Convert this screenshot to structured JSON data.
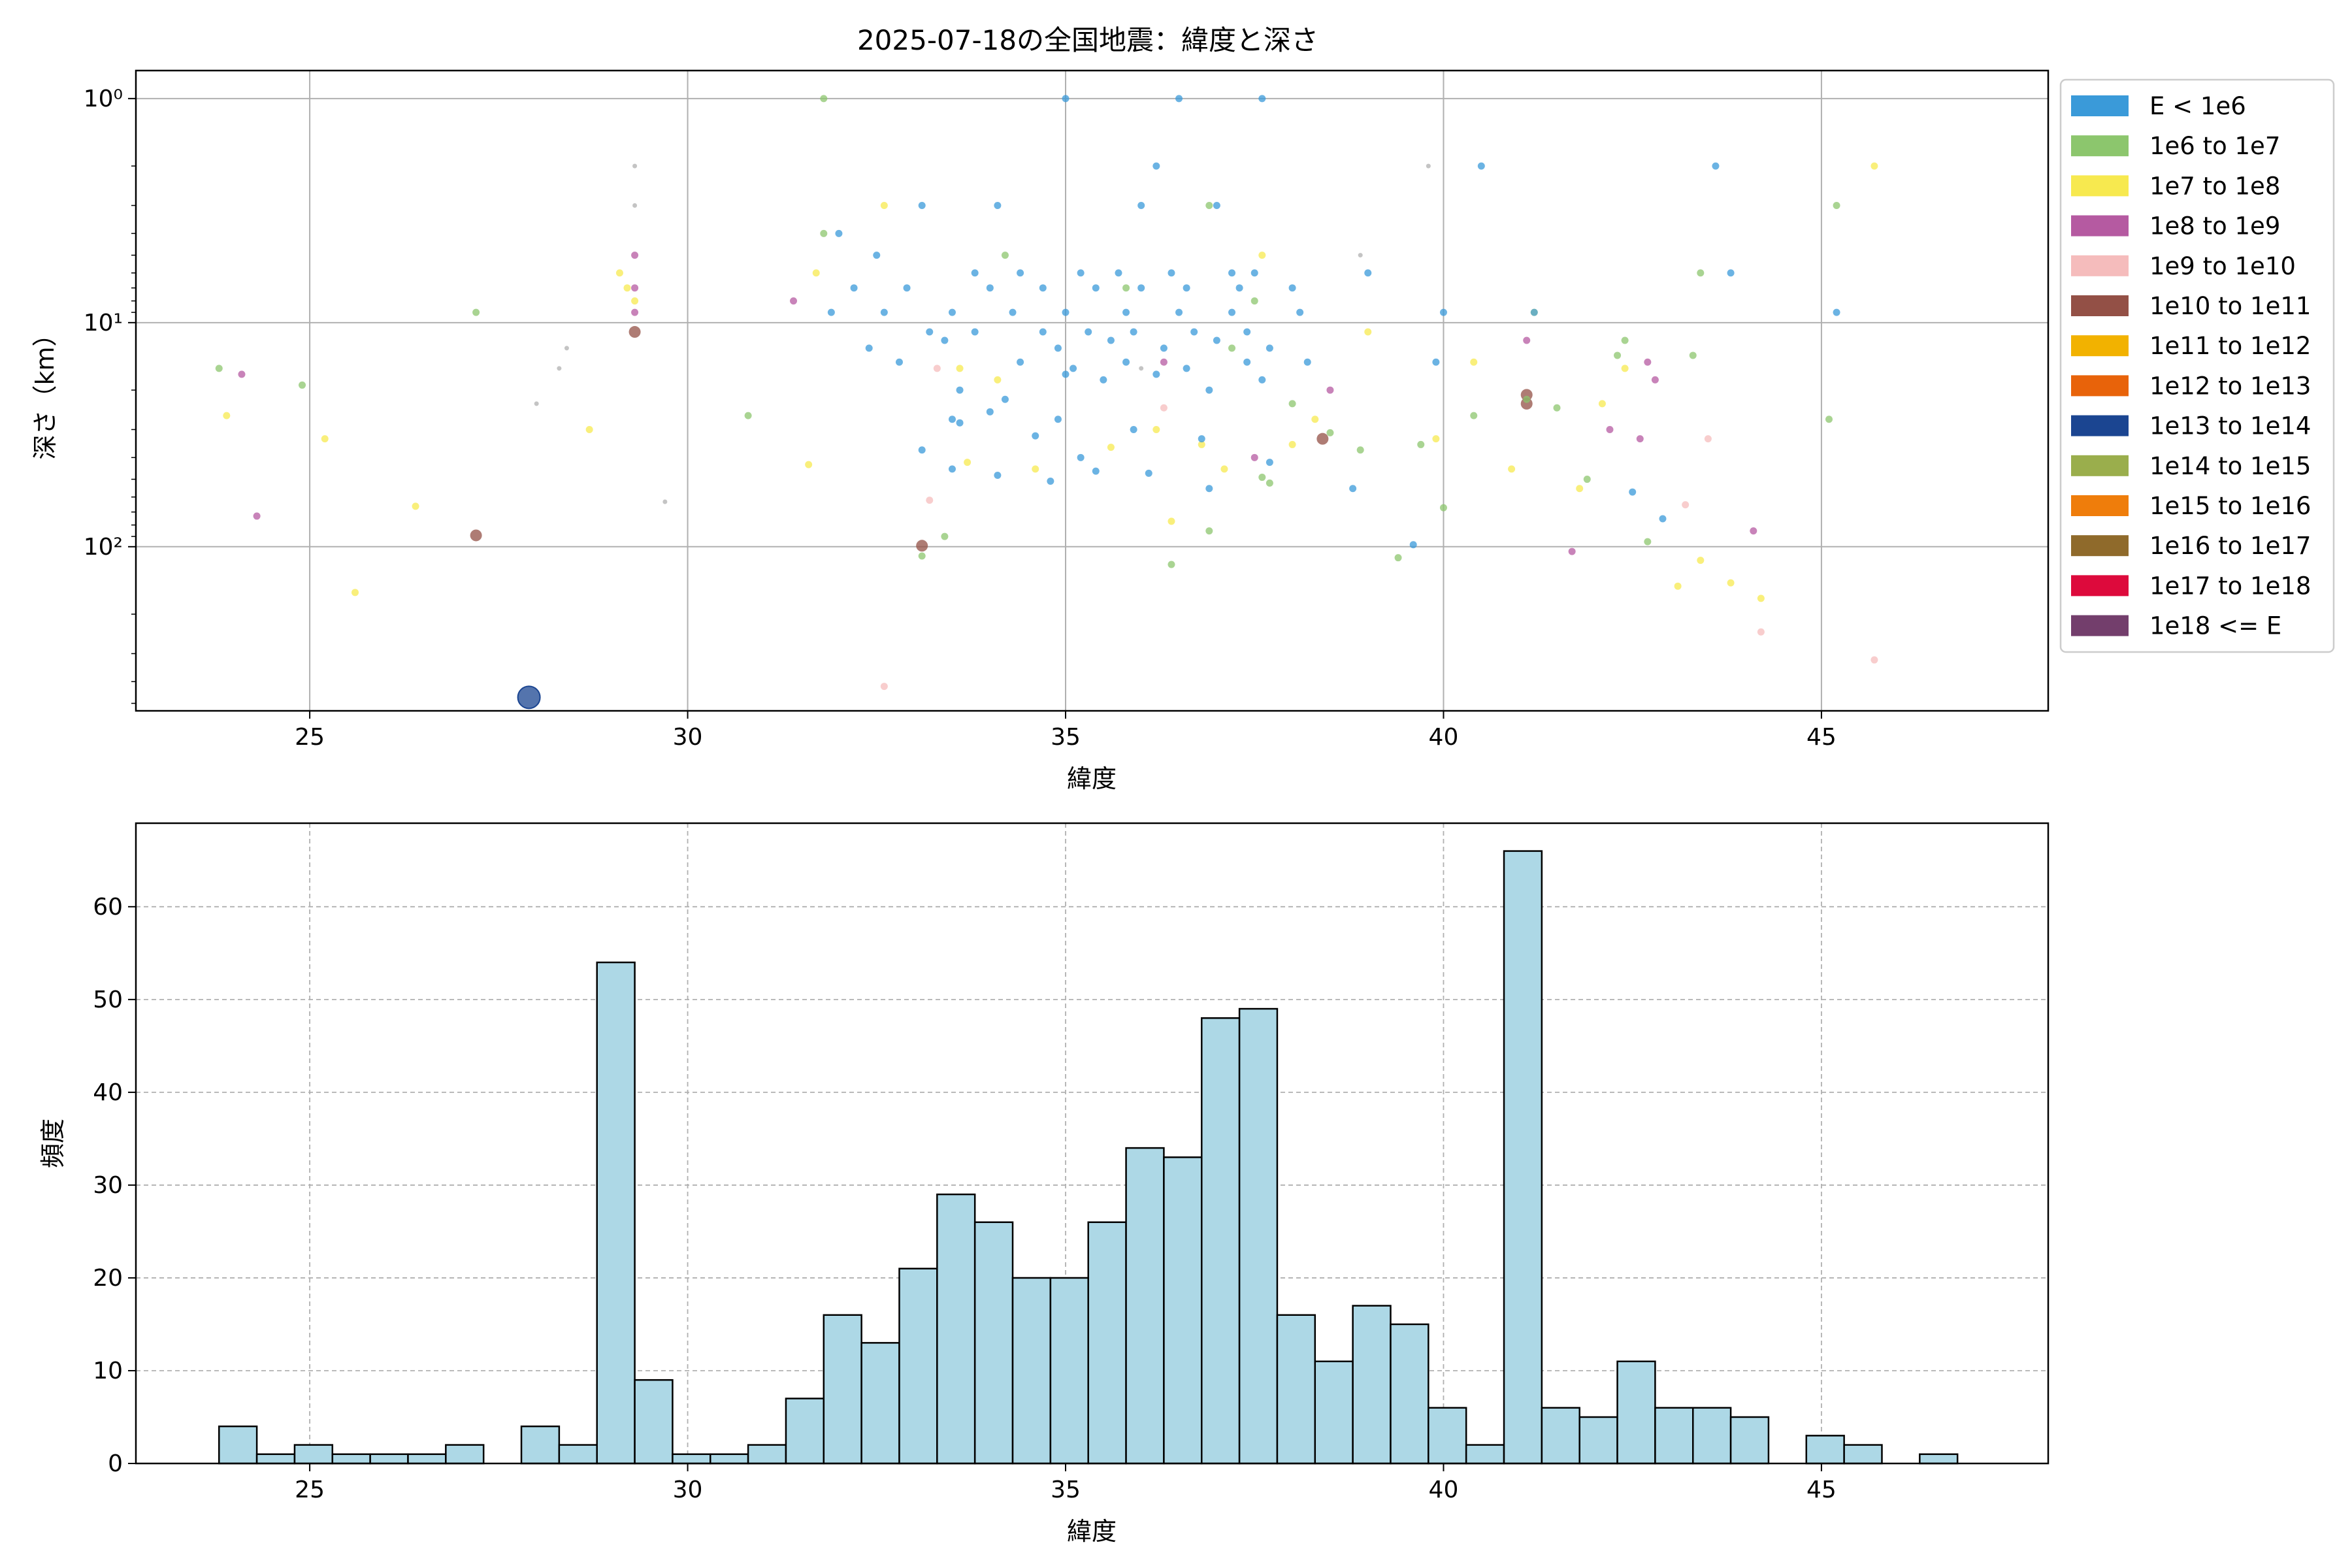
{
  "figure_title": "2025-07-18の全国地震：緯度と深さ",
  "chart_data": [
    {
      "type": "scatter",
      "xlabel": "緯度",
      "ylabel": "深さ（km）",
      "xlim": [
        22.7,
        48.0
      ],
      "ylim": [
        540,
        0.75
      ],
      "y_scale": "log (inverted)",
      "x_ticks": [
        25,
        30,
        35,
        40,
        45
      ],
      "x_tick_labels": [
        "25",
        "30",
        "35",
        "40",
        "45"
      ],
      "y_ticks": [
        1,
        10,
        100
      ],
      "y_tick_labels": [
        "10⁰",
        "10¹",
        "10²"
      ],
      "grid": true,
      "legend_position": "right, outside plot",
      "legend": [
        {
          "label": "E < 1e6",
          "color": "#3a9ad9"
        },
        {
          "label": "1e6 to 1e7",
          "color": "#8cc66d"
        },
        {
          "label": "1e7 to 1e8",
          "color": "#f7e94f"
        },
        {
          "label": "1e8 to 1e9",
          "color": "#b55aa1"
        },
        {
          "label": "1e9 to 1e10",
          "color": "#f5bcbc"
        },
        {
          "label": "1e10 to 1e11",
          "color": "#935046"
        },
        {
          "label": "1e11 to 1e12",
          "color": "#f2b200"
        },
        {
          "label": "1e12 to 1e13",
          "color": "#e8630a"
        },
        {
          "label": "1e13 to 1e14",
          "color": "#1b4591"
        },
        {
          "label": "1e14 to 1e15",
          "color": "#9aae4c"
        },
        {
          "label": "1e15 to 1e16",
          "color": "#ef7d0b"
        },
        {
          "label": "1e16 to 1e17",
          "color": "#8f6a2b"
        },
        {
          "label": "1e17 to 1e18",
          "color": "#dd0a3c"
        },
        {
          "label": "1e18 <= E",
          "color": "#733e6c"
        }
      ],
      "points": [
        [
          27.9,
          470,
          8
        ],
        [
          27.2,
          89,
          5
        ],
        [
          33.1,
          99,
          5
        ],
        [
          38.4,
          33,
          5
        ],
        [
          41.1,
          23,
          5
        ],
        [
          41.1,
          21,
          5
        ],
        [
          29.3,
          11,
          5
        ],
        [
          29.3,
          9,
          3
        ],
        [
          29.3,
          7,
          3
        ],
        [
          29.3,
          5,
          3
        ],
        [
          24.1,
          17,
          3
        ],
        [
          24.3,
          73,
          3
        ],
        [
          31.4,
          8,
          3
        ],
        [
          36.3,
          15,
          3
        ],
        [
          37.5,
          40,
          3
        ],
        [
          38.5,
          20,
          3
        ],
        [
          41.1,
          12,
          3
        ],
        [
          41.7,
          105,
          3
        ],
        [
          42.2,
          30,
          3
        ],
        [
          42.6,
          33,
          3
        ],
        [
          42.7,
          15,
          3
        ],
        [
          42.8,
          18,
          3
        ],
        [
          44.1,
          85,
          3
        ],
        [
          33.3,
          16,
          4
        ],
        [
          33.2,
          62,
          4
        ],
        [
          36.3,
          24,
          4
        ],
        [
          43.2,
          65,
          4
        ],
        [
          43.5,
          33,
          4
        ],
        [
          44.2,
          240,
          4
        ],
        [
          45.7,
          320,
          4
        ],
        [
          32.6,
          420,
          4
        ],
        [
          29.2,
          7,
          2
        ],
        [
          29.3,
          8,
          2
        ],
        [
          29.1,
          6,
          2
        ],
        [
          23.8,
          16,
          1
        ],
        [
          24.9,
          19,
          1
        ],
        [
          27.2,
          9,
          1
        ],
        [
          30.8,
          26,
          1
        ],
        [
          31.8,
          1,
          1
        ],
        [
          31.8,
          4,
          1
        ],
        [
          33.1,
          110,
          1
        ],
        [
          33.4,
          90,
          1
        ],
        [
          34.2,
          5,
          1
        ],
        [
          35.8,
          7,
          1
        ],
        [
          36.4,
          120,
          1
        ],
        [
          36.9,
          3,
          1
        ],
        [
          36.9,
          85,
          1
        ],
        [
          37.2,
          13,
          1
        ],
        [
          37.5,
          8,
          1
        ],
        [
          37.6,
          49,
          1
        ],
        [
          37.7,
          52,
          1
        ],
        [
          38.0,
          23,
          1
        ],
        [
          38.5,
          31,
          1
        ],
        [
          38.9,
          37,
          1
        ],
        [
          39.4,
          112,
          1
        ],
        [
          39.7,
          35,
          1
        ],
        [
          40.0,
          67,
          1
        ],
        [
          40.4,
          26,
          1
        ],
        [
          41.1,
          22,
          1
        ],
        [
          41.5,
          24,
          1
        ],
        [
          41.9,
          50,
          1
        ],
        [
          42.3,
          14,
          1
        ],
        [
          42.4,
          12,
          1
        ],
        [
          42.7,
          95,
          1
        ],
        [
          43.3,
          14,
          1
        ],
        [
          43.4,
          6,
          1
        ],
        [
          45.2,
          3,
          1
        ],
        [
          45.1,
          27,
          1
        ],
        [
          23.9,
          26,
          2
        ],
        [
          25.2,
          33,
          2
        ],
        [
          25.6,
          160,
          2
        ],
        [
          26.4,
          66,
          2
        ],
        [
          28.7,
          30,
          2
        ],
        [
          31.6,
          43,
          2
        ],
        [
          31.7,
          6,
          2
        ],
        [
          32.6,
          3,
          2
        ],
        [
          33.6,
          16,
          2
        ],
        [
          33.7,
          42,
          2
        ],
        [
          34.1,
          18,
          2
        ],
        [
          34.6,
          45,
          2
        ],
        [
          35.6,
          36,
          2
        ],
        [
          36.2,
          30,
          2
        ],
        [
          36.4,
          77,
          2
        ],
        [
          36.8,
          35,
          2
        ],
        [
          37.1,
          45,
          2
        ],
        [
          37.6,
          5,
          2
        ],
        [
          38.0,
          35,
          2
        ],
        [
          38.3,
          27,
          2
        ],
        [
          39.0,
          11,
          2
        ],
        [
          39.9,
          33,
          2
        ],
        [
          40.4,
          15,
          2
        ],
        [
          40.9,
          45,
          2
        ],
        [
          41.2,
          9,
          2
        ],
        [
          41.8,
          55,
          2
        ],
        [
          42.1,
          23,
          2
        ],
        [
          42.4,
          16,
          2
        ],
        [
          43.1,
          150,
          2
        ],
        [
          43.4,
          115,
          2
        ],
        [
          43.8,
          145,
          2
        ],
        [
          44.2,
          170,
          2
        ],
        [
          45.7,
          2,
          2
        ],
        [
          35.0,
          1,
          0
        ],
        [
          36.5,
          1,
          0
        ],
        [
          37.6,
          1,
          0
        ],
        [
          36.2,
          2,
          0
        ],
        [
          40.5,
          2,
          0
        ],
        [
          43.6,
          2,
          0
        ],
        [
          43.8,
          6,
          0
        ],
        [
          33.1,
          3,
          0
        ],
        [
          34.1,
          3,
          0
        ],
        [
          36.0,
          3,
          0
        ],
        [
          37.0,
          3,
          0
        ],
        [
          32.0,
          4,
          0
        ],
        [
          32.5,
          5,
          0
        ],
        [
          33.8,
          6,
          0
        ],
        [
          34.4,
          6,
          0
        ],
        [
          35.2,
          6,
          0
        ],
        [
          35.7,
          6,
          0
        ],
        [
          36.4,
          6,
          0
        ],
        [
          37.2,
          6,
          0
        ],
        [
          37.5,
          6,
          0
        ],
        [
          32.2,
          7,
          0
        ],
        [
          32.9,
          7,
          0
        ],
        [
          34.0,
          7,
          0
        ],
        [
          34.7,
          7,
          0
        ],
        [
          35.4,
          7,
          0
        ],
        [
          36.0,
          7,
          0
        ],
        [
          36.6,
          7,
          0
        ],
        [
          37.3,
          7,
          0
        ],
        [
          38.0,
          7,
          0
        ],
        [
          31.9,
          9,
          0
        ],
        [
          32.6,
          9,
          0
        ],
        [
          33.5,
          9,
          0
        ],
        [
          34.3,
          9,
          0
        ],
        [
          35.0,
          9,
          0
        ],
        [
          35.8,
          9,
          0
        ],
        [
          36.5,
          9,
          0
        ],
        [
          37.2,
          9,
          0
        ],
        [
          38.1,
          9,
          0
        ],
        [
          39.0,
          6,
          0
        ],
        [
          40.0,
          9,
          0
        ],
        [
          41.2,
          9,
          0
        ],
        [
          45.2,
          9,
          0
        ],
        [
          33.2,
          11,
          0
        ],
        [
          33.8,
          11,
          0
        ],
        [
          34.7,
          11,
          0
        ],
        [
          35.3,
          11,
          0
        ],
        [
          35.9,
          11,
          0
        ],
        [
          36.7,
          11,
          0
        ],
        [
          37.4,
          11,
          0
        ],
        [
          32.4,
          13,
          0
        ],
        [
          33.4,
          12,
          0
        ],
        [
          34.9,
          13,
          0
        ],
        [
          35.6,
          12,
          0
        ],
        [
          36.3,
          13,
          0
        ],
        [
          37.0,
          12,
          0
        ],
        [
          37.7,
          13,
          0
        ],
        [
          32.8,
          15,
          0
        ],
        [
          34.4,
          15,
          0
        ],
        [
          35.1,
          16,
          0
        ],
        [
          35.8,
          15,
          0
        ],
        [
          36.6,
          16,
          0
        ],
        [
          37.4,
          15,
          0
        ],
        [
          38.2,
          15,
          0
        ],
        [
          39.9,
          15,
          0
        ],
        [
          33.6,
          20,
          0
        ],
        [
          34.2,
          22,
          0
        ],
        [
          35.0,
          17,
          0
        ],
        [
          35.5,
          18,
          0
        ],
        [
          36.2,
          17,
          0
        ],
        [
          36.9,
          20,
          0
        ],
        [
          37.6,
          18,
          0
        ],
        [
          33.1,
          37,
          0
        ],
        [
          33.6,
          28,
          0
        ],
        [
          34.0,
          25,
          0
        ],
        [
          34.6,
          32,
          0
        ],
        [
          35.2,
          40,
          0
        ],
        [
          35.9,
          30,
          0
        ],
        [
          36.8,
          33,
          0
        ],
        [
          33.5,
          45,
          0
        ],
        [
          34.1,
          48,
          0
        ],
        [
          34.8,
          51,
          0
        ],
        [
          35.4,
          46,
          0
        ],
        [
          36.1,
          47,
          0
        ],
        [
          36.9,
          55,
          0
        ],
        [
          37.7,
          42,
          0
        ],
        [
          38.8,
          55,
          0
        ],
        [
          39.6,
          98,
          0
        ],
        [
          42.5,
          57,
          0
        ],
        [
          42.9,
          75,
          0
        ],
        [
          33.5,
          27,
          0
        ],
        [
          34.9,
          27,
          0
        ],
        [
          29.3,
          2,
          6
        ],
        [
          29.3,
          3,
          6
        ],
        [
          29.7,
          63,
          6
        ],
        [
          28.0,
          23,
          6
        ],
        [
          28.3,
          16,
          6
        ],
        [
          28.4,
          13,
          6
        ],
        [
          38.9,
          5,
          6
        ],
        [
          39.8,
          2,
          6
        ],
        [
          36.0,
          16,
          6
        ]
      ],
      "point_fields": [
        "latitude",
        "depth_km",
        "energy_class_index (0-13, 6 = grey small marker)"
      ]
    },
    {
      "type": "bar",
      "title": "",
      "xlabel": "緯度",
      "ylabel": "頻度",
      "xlim": [
        22.7,
        48.0
      ],
      "ylim": [
        0,
        69
      ],
      "x_ticks": [
        25,
        30,
        35,
        40,
        45
      ],
      "y_ticks": [
        0,
        10,
        20,
        30,
        40,
        50,
        60
      ],
      "grid": true,
      "bin_start": 23.8,
      "bin_width": 0.5,
      "bar_color": "#add8e6",
      "values": [
        4,
        1,
        2,
        1,
        1,
        1,
        2,
        0,
        4,
        2,
        54,
        9,
        1,
        1,
        2,
        7,
        16,
        13,
        21,
        29,
        26,
        20,
        20,
        26,
        34,
        33,
        48,
        49,
        16,
        11,
        17,
        15,
        6,
        2,
        66,
        6,
        5,
        11,
        6,
        6,
        5,
        0,
        3,
        2,
        0,
        1
      ]
    }
  ]
}
